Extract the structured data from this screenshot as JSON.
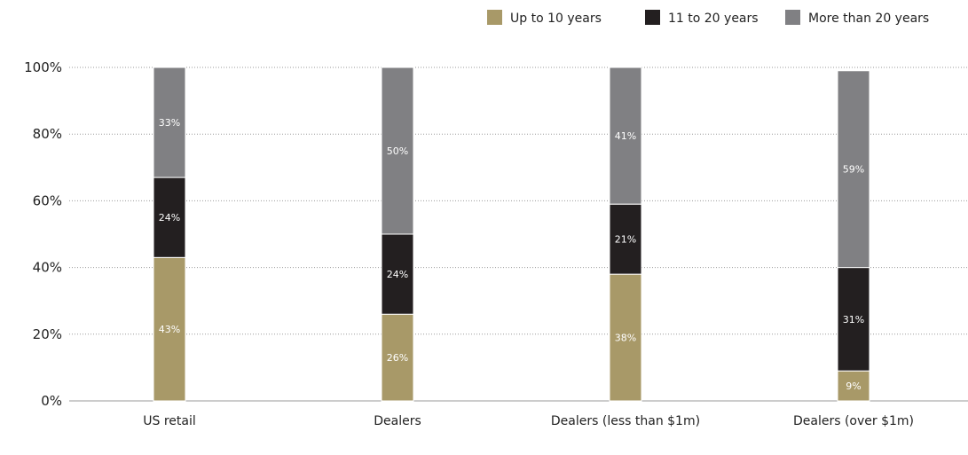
{
  "chart_data": {
    "type": "bar",
    "stacked": true,
    "categories": [
      "US retail",
      "Dealers",
      "Dealers (less than $1m)",
      "Dealers (over $1m)"
    ],
    "series": [
      {
        "name": "Up to 10 years",
        "color": "#a89968",
        "values": [
          43,
          26,
          38,
          9
        ],
        "labels": [
          "43%",
          "26%",
          "38%",
          "9%"
        ]
      },
      {
        "name": "11 to 20 years",
        "color": "#231f20",
        "values": [
          24,
          24,
          21,
          31
        ],
        "labels": [
          "24%",
          "24%",
          "21%",
          "31%"
        ]
      },
      {
        "name": "More than 20 years",
        "color": "#808083",
        "values": [
          33,
          50,
          41,
          59
        ],
        "labels": [
          "33%",
          "50%",
          "41%",
          "59%"
        ]
      }
    ],
    "ylim": [
      0,
      100
    ],
    "yticks": [
      0,
      20,
      40,
      60,
      80,
      100
    ],
    "ytick_labels": [
      "0%",
      "20%",
      "40%",
      "60%",
      "80%",
      "100%"
    ],
    "grid": true,
    "legend_position": "top-right",
    "title": "",
    "xlabel": "",
    "ylabel": ""
  }
}
